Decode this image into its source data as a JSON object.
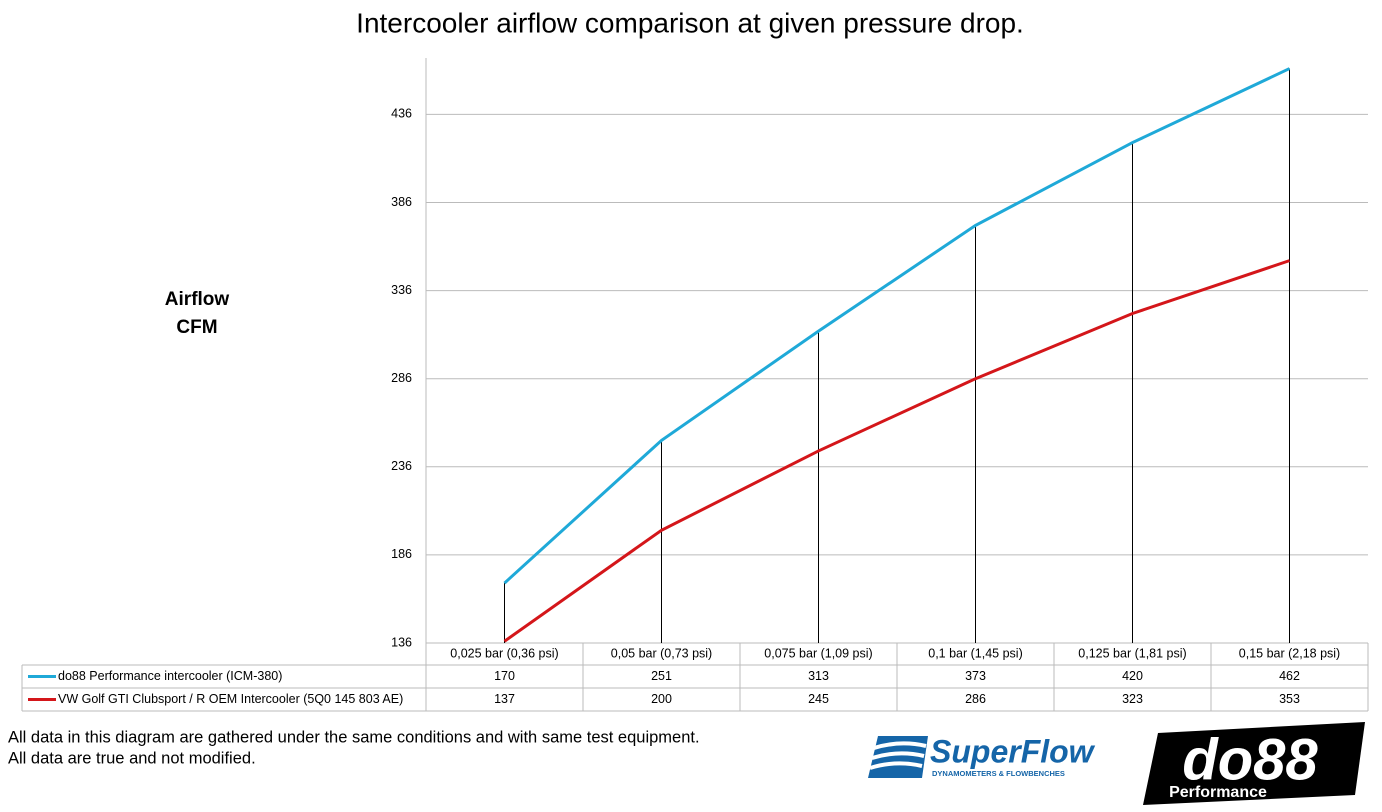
{
  "chart_data": {
    "type": "line",
    "title": "Intercooler airflow comparison at given pressure drop.",
    "ylabel_lines": [
      "Airflow",
      "CFM"
    ],
    "categories": [
      "0,025 bar (0,36 psi)",
      "0,05 bar (0,73 psi)",
      "0,075 bar (1,09 psi)",
      "0,1 bar (1,45 psi)",
      "0,125 bar (1,81 psi)",
      "0,15 bar (2,18 psi)"
    ],
    "series": [
      {
        "name": "do88 Performance intercooler (ICM-380)",
        "color": "#1fa9d8",
        "values": [
          170,
          251,
          313,
          373,
          420,
          462
        ]
      },
      {
        "name": "VW Golf GTI Clubsport / R OEM Intercooler (5Q0 145 803 AE)",
        "color": "#d4161a",
        "values": [
          137,
          200,
          245,
          286,
          323,
          353
        ]
      }
    ],
    "ylim": [
      136,
      468
    ],
    "yticks": [
      136,
      186,
      236,
      286,
      336,
      386,
      436
    ],
    "grid": true,
    "drop_lines": true,
    "data_table": true
  },
  "footer": {
    "notes": [
      "All data in this diagram are gathered under the same conditions and with same test equipment.",
      "All data are true and not modified."
    ],
    "logos": {
      "superflow": "SuperFlow",
      "superflow_tagline": "DYNAMOMETERS & FLOWBENCHES",
      "do88": "do88",
      "do88_sub": "Performance"
    }
  }
}
